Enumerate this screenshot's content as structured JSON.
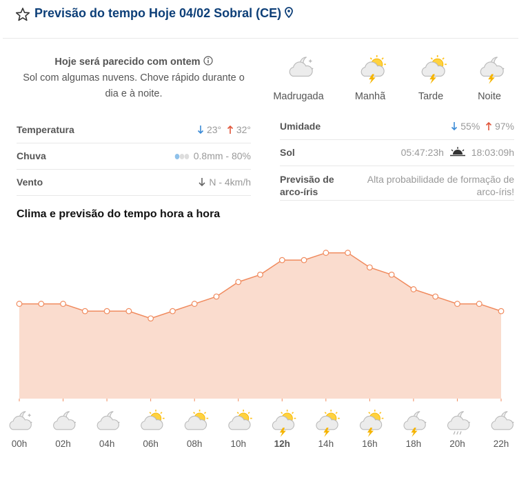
{
  "header": {
    "title": "Previsão do tempo Hoje 04/02 Sobral (CE)"
  },
  "summary": {
    "heading": "Hoje será parecido com ontem",
    "text": "Sol com algumas nuvens. Chove rápido durante o dia e à noite."
  },
  "periods": [
    "Madrugada",
    "Manhã",
    "Tarde",
    "Noite"
  ],
  "details_left": [
    {
      "label": "Temperatura",
      "min": "23°",
      "max": "32°"
    },
    {
      "label": "Chuva",
      "value": "0.8mm - 80%"
    },
    {
      "label": "Vento",
      "value": "N - 4km/h"
    }
  ],
  "details_right": [
    {
      "label": "Umidade",
      "min": "55%",
      "max": "97%"
    },
    {
      "label": "Sol",
      "sunrise": "05:47:23h",
      "sunset": "18:03:09h"
    },
    {
      "label": "Previsão de arco-íris",
      "value": "Alta probabilidade de formação de arco-íris!"
    }
  ],
  "chart_title": "Clima e previsão do tempo hora a hora",
  "chart_data": {
    "type": "area",
    "categories": [
      "00h",
      null,
      "02h",
      null,
      "04h",
      null,
      "06h",
      null,
      "08h",
      null,
      "10h",
      null,
      "12h",
      null,
      "14h",
      null,
      "16h",
      null,
      "18h",
      null,
      "20h",
      null,
      "22h"
    ],
    "values": [
      25,
      25,
      25,
      24,
      24,
      24,
      23,
      24,
      25,
      26,
      28,
      29,
      31,
      31,
      32,
      32,
      30,
      29,
      27,
      26,
      25,
      25,
      24
    ],
    "color": "#f08a5d",
    "ylim": [
      12,
      33
    ]
  }
}
